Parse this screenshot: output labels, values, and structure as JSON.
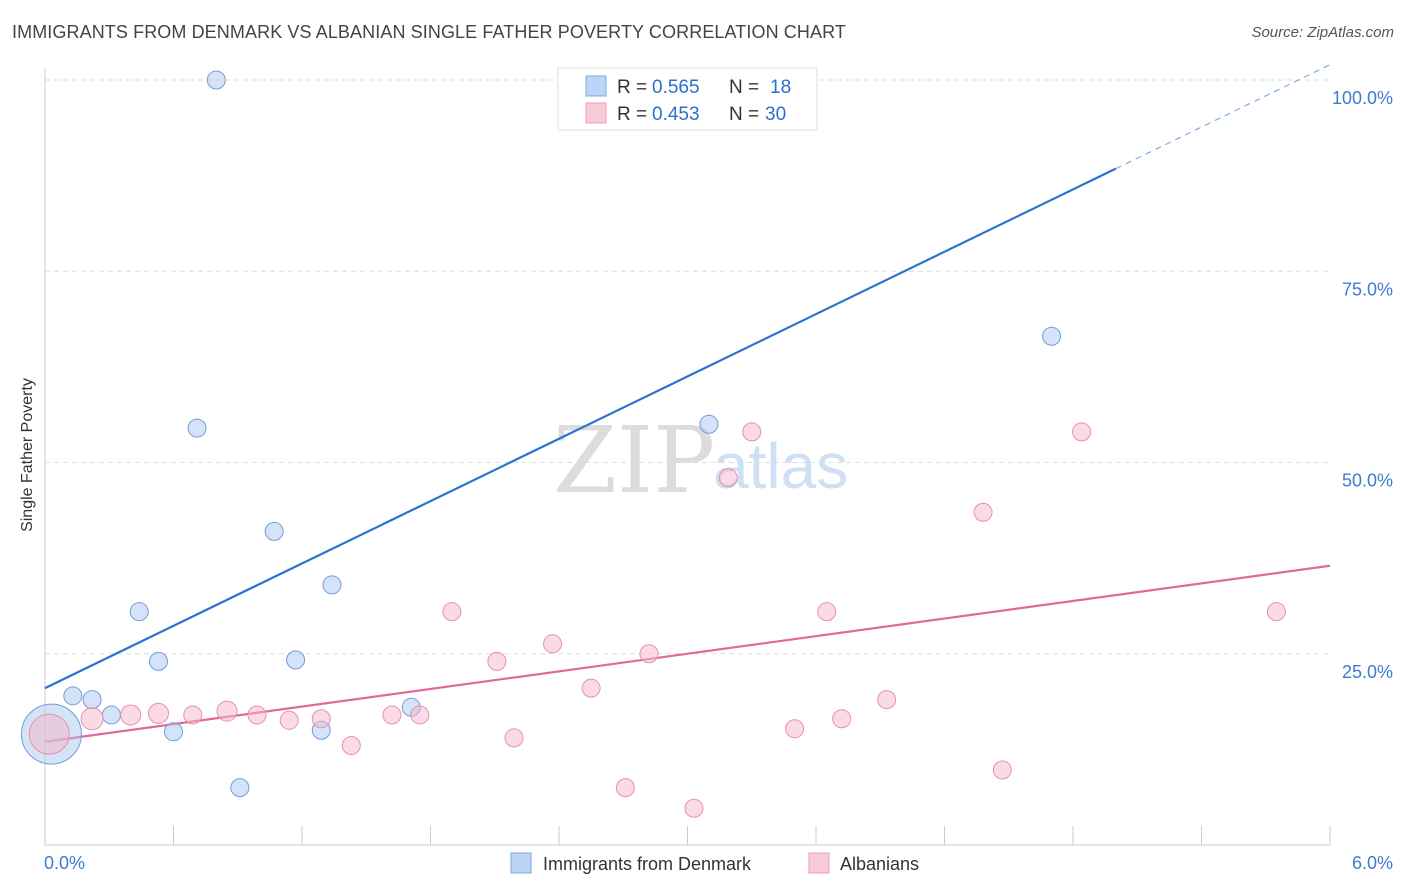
{
  "header": {
    "title": "IMMIGRANTS FROM DENMARK VS ALBANIAN SINGLE FATHER POVERTY CORRELATION CHART",
    "source": "Source: ZipAtlas.com"
  },
  "watermark": {
    "zip": "ZIP",
    "atlas": "atlas"
  },
  "legend_stats": [
    {
      "r_label": "R = ",
      "r_value": "0.565",
      "n_label": "N = ",
      "n_value": "18",
      "color": "#a9c7f0"
    },
    {
      "r_label": "R = ",
      "r_value": "0.453",
      "n_label": "N = ",
      "n_value": "30",
      "color": "#f5b8cb"
    }
  ],
  "chart_data": {
    "type": "scatter",
    "title": "IMMIGRANTS FROM DENMARK VS ALBANIAN SINGLE FATHER POVERTY CORRELATION CHART",
    "xlabel": "",
    "ylabel": "Single Father Poverty",
    "xlim": [
      0,
      6
    ],
    "ylim": [
      0,
      100
    ],
    "x_tick_labels": [
      "0.0%",
      "6.0%"
    ],
    "y_tick_labels": [
      "25.0%",
      "50.0%",
      "75.0%",
      "100.0%"
    ],
    "y_tick_values": [
      25,
      50,
      75,
      100
    ],
    "grid": true,
    "legend_position": "bottom-center",
    "series": [
      {
        "name": "Immigrants from Denmark",
        "color": "#a9c7f0",
        "edge": "#6f9fd8",
        "line_color": "#2b73d2",
        "trend": {
          "x0": 0,
          "y0": 20.5,
          "x1": 6,
          "y1": 102,
          "solid_until": 5.0
        },
        "points": [
          [
            0.03,
            14.5
          ],
          [
            0.13,
            19.5
          ],
          [
            0.22,
            19.0
          ],
          [
            0.31,
            17.0
          ],
          [
            0.44,
            30.5
          ],
          [
            0.53,
            24.0
          ],
          [
            0.6,
            14.8
          ],
          [
            0.71,
            54.5
          ],
          [
            0.8,
            100
          ],
          [
            0.91,
            7.5
          ],
          [
            1.07,
            41.0
          ],
          [
            1.17,
            24.2
          ],
          [
            1.29,
            15.0
          ],
          [
            1.34,
            34.0
          ],
          [
            1.71,
            18.0
          ],
          [
            3.1,
            55.0
          ],
          [
            3.27,
            100
          ],
          [
            4.7,
            66.5
          ]
        ],
        "sizes": [
          30,
          9,
          9,
          9,
          9,
          9,
          9,
          9,
          9,
          9,
          9,
          9,
          9,
          9,
          9,
          9,
          9,
          9
        ]
      },
      {
        "name": "Albanians",
        "color": "#f5b8cb",
        "edge": "#e98fac",
        "line_color": "#e06a97",
        "trend": {
          "x0": 0,
          "y0": 13.5,
          "x1": 6,
          "y1": 36.5,
          "solid_until": 6
        },
        "points": [
          [
            0.02,
            14.5
          ],
          [
            0.22,
            16.5
          ],
          [
            0.4,
            17.0
          ],
          [
            0.53,
            17.2
          ],
          [
            0.69,
            17.0
          ],
          [
            0.85,
            17.5
          ],
          [
            0.99,
            17.0
          ],
          [
            1.14,
            16.3
          ],
          [
            1.29,
            16.5
          ],
          [
            1.43,
            13.0
          ],
          [
            1.62,
            17.0
          ],
          [
            1.75,
            17.0
          ],
          [
            1.9,
            30.5
          ],
          [
            2.11,
            24.0
          ],
          [
            2.19,
            14.0
          ],
          [
            2.37,
            26.3
          ],
          [
            2.55,
            20.5
          ],
          [
            2.71,
            7.5
          ],
          [
            2.82,
            25.0
          ],
          [
            3.03,
            4.8
          ],
          [
            3.19,
            48.0
          ],
          [
            3.3,
            54.0
          ],
          [
            3.5,
            15.2
          ],
          [
            3.65,
            30.5
          ],
          [
            3.72,
            16.5
          ],
          [
            3.93,
            19.0
          ],
          [
            4.38,
            43.5
          ],
          [
            4.47,
            9.8
          ],
          [
            4.84,
            54.0
          ],
          [
            5.75,
            30.5
          ]
        ],
        "sizes": [
          20,
          11,
          10,
          10,
          9,
          10,
          9,
          9,
          9,
          9,
          9,
          9,
          9,
          9,
          9,
          9,
          9,
          9,
          9,
          9,
          9,
          9,
          9,
          9,
          9,
          9,
          9,
          9,
          9,
          9
        ]
      }
    ]
  }
}
